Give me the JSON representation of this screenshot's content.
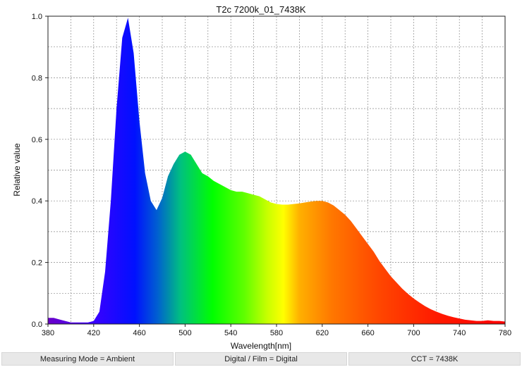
{
  "chart_data": {
    "type": "area",
    "title": "T2c 7200k_01_7438K",
    "xlabel": "Wavelength[nm]",
    "ylabel": "Relative value",
    "xlim": [
      380,
      780
    ],
    "ylim": [
      0,
      1.0
    ],
    "x_ticks": [
      380,
      420,
      460,
      500,
      540,
      580,
      620,
      660,
      700,
      740,
      780
    ],
    "y_ticks": [
      "0.0",
      "0.2",
      "0.4",
      "0.6",
      "0.8",
      "1.0"
    ],
    "grid": true,
    "fill": "visible-spectrum-gradient",
    "x": [
      380,
      385,
      390,
      395,
      400,
      405,
      410,
      415,
      420,
      425,
      430,
      435,
      440,
      445,
      450,
      455,
      460,
      465,
      470,
      475,
      480,
      485,
      490,
      495,
      500,
      505,
      510,
      515,
      520,
      525,
      530,
      535,
      540,
      545,
      550,
      555,
      560,
      565,
      570,
      575,
      580,
      585,
      590,
      595,
      600,
      605,
      610,
      615,
      620,
      625,
      630,
      635,
      640,
      645,
      650,
      655,
      660,
      665,
      670,
      675,
      680,
      685,
      690,
      695,
      700,
      705,
      710,
      715,
      720,
      725,
      730,
      735,
      740,
      745,
      750,
      755,
      760,
      765,
      770,
      775,
      780
    ],
    "y": [
      0.02,
      0.02,
      0.015,
      0.01,
      0.005,
      0.005,
      0.005,
      0.005,
      0.01,
      0.04,
      0.17,
      0.4,
      0.7,
      0.93,
      0.995,
      0.88,
      0.66,
      0.49,
      0.4,
      0.37,
      0.41,
      0.48,
      0.52,
      0.55,
      0.56,
      0.55,
      0.52,
      0.49,
      0.48,
      0.465,
      0.455,
      0.445,
      0.435,
      0.43,
      0.43,
      0.425,
      0.42,
      0.415,
      0.405,
      0.395,
      0.39,
      0.388,
      0.388,
      0.39,
      0.392,
      0.395,
      0.398,
      0.4,
      0.4,
      0.395,
      0.385,
      0.37,
      0.355,
      0.335,
      0.31,
      0.285,
      0.26,
      0.235,
      0.205,
      0.18,
      0.155,
      0.135,
      0.115,
      0.098,
      0.083,
      0.07,
      0.058,
      0.048,
      0.04,
      0.033,
      0.027,
      0.022,
      0.018,
      0.014,
      0.012,
      0.01,
      0.01,
      0.012,
      0.01,
      0.01,
      0.008
    ]
  },
  "status_bar": {
    "measuring_mode": "Measuring Mode = Ambient",
    "digital_film": "Digital / Film = Digital",
    "cct": "CCT = 7438K"
  },
  "colors": {
    "grid": "#8a8a8a",
    "axis": "#222222",
    "status_bg": "#e8e8e8"
  }
}
